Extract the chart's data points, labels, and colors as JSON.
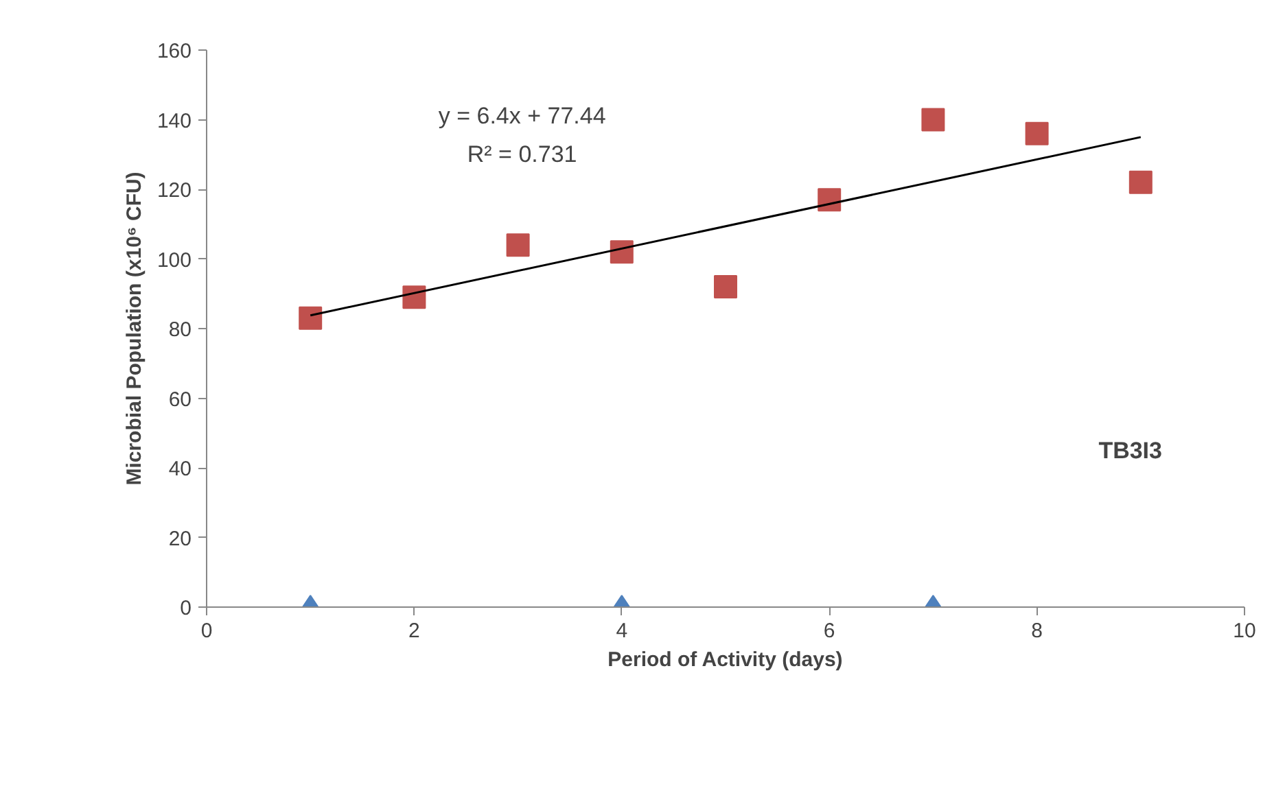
{
  "chart_data": {
    "type": "scatter",
    "xlabel": "Period of Activity (days)",
    "ylabel": "Microbial Population (x10⁶ CFU)",
    "xlim": [
      0,
      10
    ],
    "xticks": [
      0,
      2,
      4,
      6,
      8,
      10
    ],
    "ylim": [
      0,
      160
    ],
    "yticks": [
      0,
      20,
      40,
      60,
      80,
      100,
      120,
      140,
      160
    ],
    "grid": false,
    "series": [
      {
        "marker": "diamond",
        "color": "#4f81bd",
        "x": [
          1,
          4,
          7
        ],
        "values": [
          0,
          0,
          0
        ]
      },
      {
        "marker": "square",
        "color": "#c0504d",
        "x": [
          1,
          2,
          3,
          4,
          5,
          6,
          7,
          8,
          9
        ],
        "values": [
          83,
          89,
          104,
          102,
          92,
          117,
          140,
          136,
          122
        ]
      },
      {
        "type": "line",
        "color": "#000000",
        "x": [
          1,
          9
        ],
        "values": [
          83.8,
          135.0
        ]
      }
    ],
    "annotations": [
      "y = 6.4x + 77.44",
      "R² = 0.731",
      "TB3I3"
    ]
  }
}
